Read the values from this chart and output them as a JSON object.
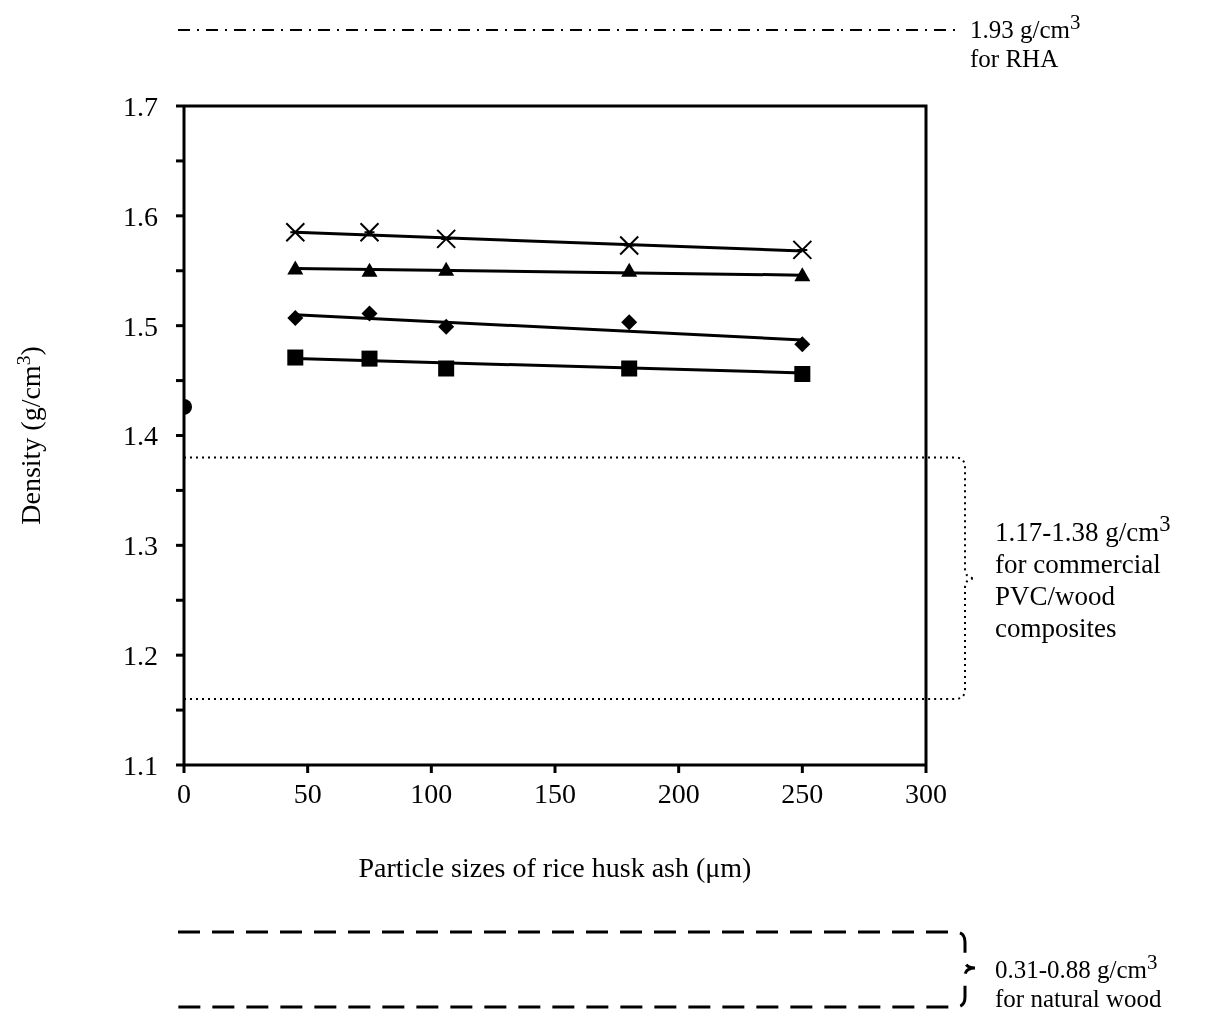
{
  "chart_data": {
    "type": "scatter",
    "xlabel": "Particle sizes of rice husk ash (μm)",
    "ylabel": "Density (g/cm$^{3}$)",
    "xlim": [
      0,
      300
    ],
    "xticks": [
      0,
      50,
      100,
      150,
      200,
      250,
      300
    ],
    "ylim": [
      1.1,
      1.7
    ],
    "yticks": [
      1.1,
      {
        "value": 1.15,
        "label": null
      },
      1.2,
      {
        "value": 1.25,
        "label": null
      },
      1.3,
      {
        "value": 1.35,
        "label": null
      },
      1.4,
      {
        "value": 1.45,
        "label": null
      },
      1.5,
      {
        "value": 1.55,
        "label": null
      },
      1.6,
      {
        "value": 1.65,
        "label": null
      },
      1.7
    ],
    "grid": false,
    "legend": false,
    "series": [
      {
        "marker": "cross",
        "color": "#000000",
        "x": [
          45,
          75,
          106,
          180,
          250
        ],
        "values": [
          1.585,
          1.585,
          1.579,
          1.573,
          1.569
        ]
      },
      {
        "marker": "triangle",
        "color": "#000000",
        "x": [
          45,
          75,
          106,
          180,
          250
        ],
        "values": [
          1.552,
          1.55,
          1.551,
          1.55,
          1.546
        ]
      },
      {
        "marker": "diamond",
        "color": "#000000",
        "x": [
          45,
          75,
          106,
          180,
          250
        ],
        "values": [
          1.507,
          1.511,
          1.499,
          1.503,
          1.483
        ]
      },
      {
        "marker": "square",
        "color": "#000000",
        "x": [
          45,
          75,
          106,
          180,
          250
        ],
        "values": [
          1.471,
          1.47,
          1.461,
          1.461,
          1.456
        ]
      },
      {
        "marker": "circle",
        "color": "#000000",
        "x": [
          0
        ],
        "values": [
          1.426
        ]
      },
      {
        "type": "line",
        "marker": "none",
        "color": "#000000",
        "x": [
          45,
          250
        ],
        "values": [
          1.585,
          1.568
        ]
      },
      {
        "type": "line",
        "marker": "none",
        "color": "#000000",
        "x": [
          45,
          250
        ],
        "values": [
          1.552,
          1.546
        ]
      },
      {
        "type": "line",
        "marker": "none",
        "color": "#000000",
        "x": [
          45,
          250
        ],
        "values": [
          1.51,
          1.487
        ]
      },
      {
        "type": "line",
        "marker": "none",
        "color": "#000000",
        "x": [
          45,
          250
        ],
        "values": [
          1.47,
          1.457
        ]
      }
    ],
    "ref_lines": [
      {
        "axis": "y",
        "value": 1.38,
        "label": "1.17-1.38 g/cm$^{3}$\nfor commercial\nPVC/wood\ncomposites",
        "color": "#000000",
        "line_style": "dotted"
      },
      {
        "axis": "y",
        "value": 1.16,
        "color": "#000000",
        "line_style": "dotted"
      }
    ],
    "annotations": [
      "1.93 g/cm$^{3}$\nfor RHA",
      "0.31-0.88 g/cm$^{3}$\nfor natural wood"
    ]
  }
}
